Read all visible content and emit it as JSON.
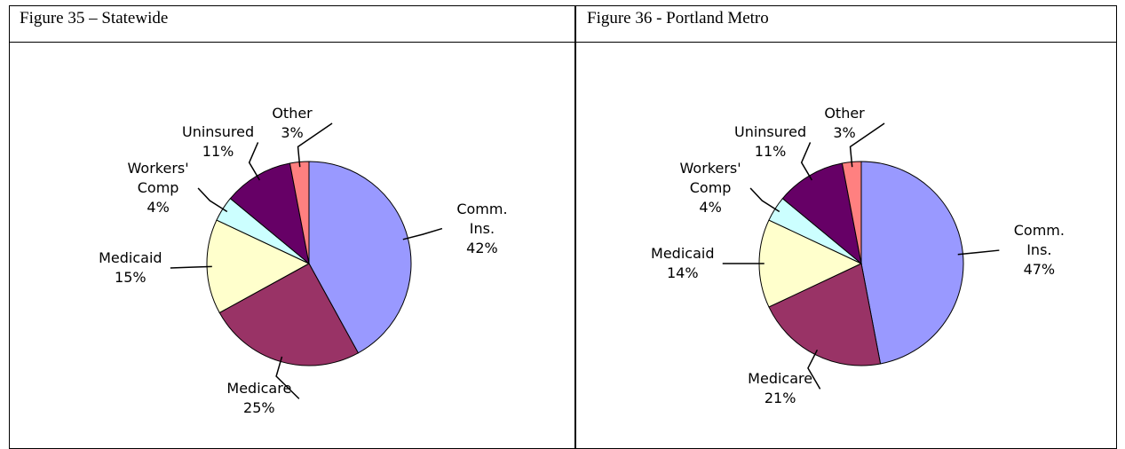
{
  "chart_data": [
    {
      "type": "pie",
      "title": "Figure 35 – Statewide",
      "categories": [
        "Comm. Ins.",
        "Medicare",
        "Medicaid",
        "Workers' Comp",
        "Uninsured",
        "Other"
      ],
      "values": [
        42,
        25,
        15,
        4,
        11,
        3
      ],
      "value_labels": [
        "42%",
        "25%",
        "15%",
        "4%",
        "11%",
        "3%"
      ],
      "colors": [
        "#9999ff",
        "#993366",
        "#ffffcc",
        "#ccffff",
        "#660066",
        "#ff8080"
      ]
    },
    {
      "type": "pie",
      "title": "Figure 36 - Portland Metro",
      "categories": [
        "Comm. Ins.",
        "Medicare",
        "Medicaid",
        "Workers' Comp",
        "Uninsured",
        "Other"
      ],
      "values": [
        47,
        21,
        14,
        4,
        11,
        3
      ],
      "value_labels": [
        "47%",
        "21%",
        "14%",
        "4%",
        "11%",
        "3%"
      ],
      "colors": [
        "#9999ff",
        "#993366",
        "#ffffcc",
        "#ccffff",
        "#660066",
        "#ff8080"
      ]
    }
  ]
}
